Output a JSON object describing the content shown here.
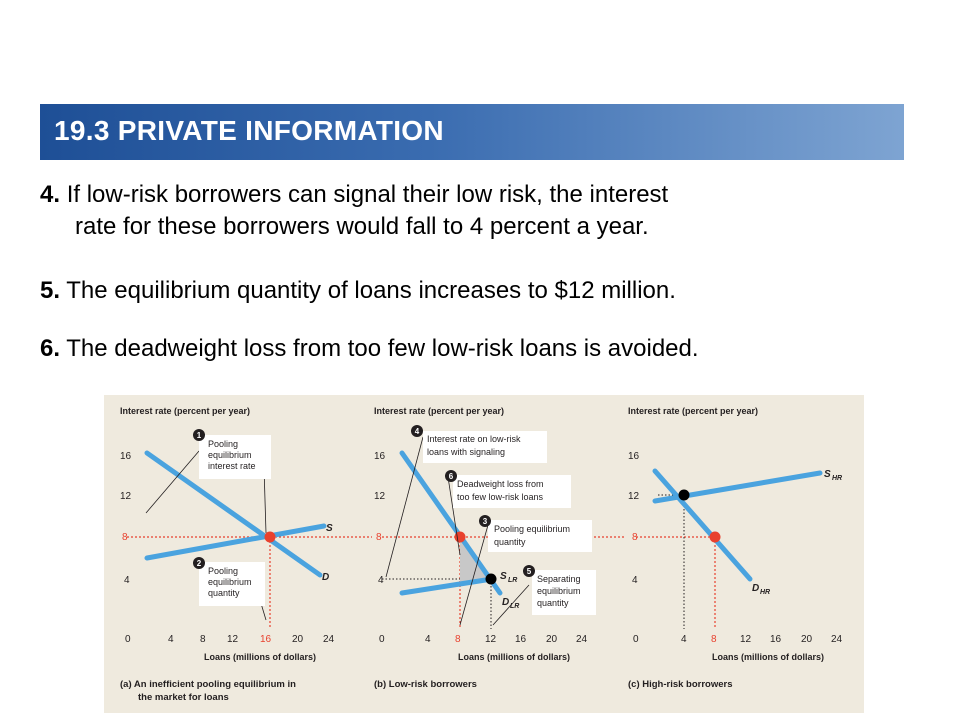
{
  "header": {
    "title": "19.3 PRIVATE INFORMATION"
  },
  "points": [
    {
      "num": "4.",
      "line1": "If low-risk borrowers can signal their low risk, the interest",
      "line2": "rate for these borrowers would fall to 4 percent a year."
    },
    {
      "num": "5.",
      "line1": "The equilibrium quantity of loans increases to $12 million."
    },
    {
      "num": "6.",
      "line1": "The deadweight loss from too few low-risk loans is avoided."
    }
  ],
  "colors": {
    "curve": "#4aa3df",
    "equilibrium": "#e8412e",
    "black_point": "#000000",
    "annotation_box": "#ffffff",
    "deadweight": "#c8c8c8"
  },
  "chart_data": [
    {
      "type": "line",
      "ylabel": "Interest rate (percent per year)",
      "xlabel": "Loans (millions of dollars)",
      "x_ticks": [
        "0",
        "4",
        "8",
        "12",
        "16",
        "20",
        "24"
      ],
      "y_ticks": [
        "4",
        "8",
        "12",
        "16"
      ],
      "xlim": [
        0,
        24
      ],
      "ylim": [
        0,
        18
      ],
      "series": [
        {
          "name": "S",
          "points": [
            [
              0,
              6
            ],
            [
              24,
              10
            ]
          ]
        },
        {
          "name": "D",
          "points": [
            [
              0,
              16
            ],
            [
              24,
              4
            ]
          ]
        }
      ],
      "equilibrium": {
        "x": 16,
        "y": 8
      },
      "callouts": [
        {
          "num": "1",
          "text": [
            "Pooling",
            "equilibrium",
            "interest rate"
          ]
        },
        {
          "num": "2",
          "text": [
            "Pooling",
            "equilibrium",
            "quantity"
          ]
        }
      ],
      "caption": [
        "(a) An inefficient pooling equilibrium in",
        "the market for loans"
      ]
    },
    {
      "type": "line",
      "ylabel": "Interest rate (percent per year)",
      "xlabel": "Loans (millions of dollars)",
      "x_ticks": [
        "0",
        "4",
        "8",
        "12",
        "16",
        "20",
        "24"
      ],
      "y_ticks": [
        "4",
        "8",
        "12",
        "16"
      ],
      "xlim": [
        0,
        24
      ],
      "ylim": [
        0,
        18
      ],
      "series": [
        {
          "name": "S",
          "sub": "LR",
          "points": [
            [
              2,
              2.5
            ],
            [
              12,
              4
            ]
          ]
        },
        {
          "name": "D",
          "sub": "LR",
          "points": [
            [
              2,
              16
            ],
            [
              14,
              2.5
            ]
          ]
        }
      ],
      "pooling_point": {
        "x": 8,
        "y": 8
      },
      "separating_point": {
        "x": 12,
        "y": 4
      },
      "callouts": [
        {
          "num": "4",
          "text": [
            "Interest rate on low-risk",
            "loans with signaling"
          ]
        },
        {
          "num": "6",
          "text": [
            "Deadweight loss from",
            "too few low-risk loans"
          ]
        },
        {
          "num": "3",
          "text": [
            "Pooling equilibrium",
            "quantity"
          ]
        },
        {
          "num": "5",
          "text": [
            "Separating",
            "equilibrium",
            "quantity"
          ]
        }
      ],
      "caption": [
        "(b) Low-risk borrowers"
      ]
    },
    {
      "type": "line",
      "ylabel": "Interest rate (percent per year)",
      "xlabel": "Loans (millions of dollars)",
      "x_ticks": [
        "0",
        "4",
        "8",
        "12",
        "16",
        "20",
        "24"
      ],
      "y_ticks": [
        "4",
        "8",
        "12",
        "16"
      ],
      "xlim": [
        0,
        24
      ],
      "ylim": [
        0,
        18
      ],
      "series": [
        {
          "name": "S",
          "sub": "HR",
          "points": [
            [
              2,
              11.5
            ],
            [
              24,
              15
            ]
          ]
        },
        {
          "name": "D",
          "sub": "HR",
          "points": [
            [
              2,
              14
            ],
            [
              12,
              4
            ]
          ]
        }
      ],
      "pooling_point": {
        "x": 8,
        "y": 8
      },
      "separating_point": {
        "x": 4,
        "y": 12
      },
      "caption": [
        "(c) High-risk borrowers"
      ]
    }
  ]
}
